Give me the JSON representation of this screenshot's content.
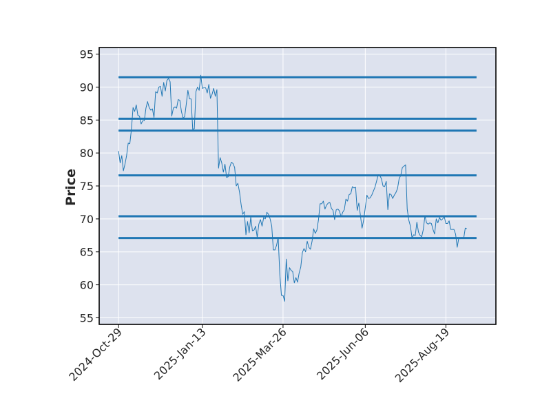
{
  "chart_data": {
    "type": "line",
    "title": "",
    "xlabel": "",
    "ylabel": "Price",
    "ylim": [
      54,
      96
    ],
    "yticks": [
      55,
      60,
      65,
      70,
      75,
      80,
      85,
      90,
      95
    ],
    "xtick_labels": [
      "2024-Oct-29",
      "2025-Jan-13",
      "2025-Mar-26",
      "2025-Jun-06",
      "2025-Aug-19"
    ],
    "xtick_positions": [
      0,
      52,
      102,
      153,
      203
    ],
    "xlim": [
      -12,
      234
    ],
    "grid": true,
    "horizontal_levels": [
      91.5,
      85.2,
      83.4,
      76.6,
      70.4,
      67.1
    ],
    "level_span": [
      0,
      222
    ],
    "series": [
      {
        "name": "",
        "points": [
          [
            0,
            80.3
          ],
          [
            1,
            78.5
          ],
          [
            2,
            79.6
          ],
          [
            3,
            77.3
          ],
          [
            4,
            78.3
          ],
          [
            5,
            79.6
          ],
          [
            6,
            81.5
          ],
          [
            7,
            81.4
          ],
          [
            8,
            83.6
          ],
          [
            9,
            86.9
          ],
          [
            10,
            86.3
          ],
          [
            11,
            87.3
          ],
          [
            12,
            85.7
          ],
          [
            13,
            85.6
          ],
          [
            14,
            84.4
          ],
          [
            15,
            84.9
          ],
          [
            16,
            84.9
          ],
          [
            17,
            86.8
          ],
          [
            18,
            87.8
          ],
          [
            19,
            86.9
          ],
          [
            20,
            86.5
          ],
          [
            21,
            86.7
          ],
          [
            22,
            85.4
          ],
          [
            23,
            89.3
          ],
          [
            24,
            89.1
          ],
          [
            25,
            90.0
          ],
          [
            26,
            90.1
          ],
          [
            27,
            88.6
          ],
          [
            28,
            90.7
          ],
          [
            29,
            89.4
          ],
          [
            30,
            91.0
          ],
          [
            31,
            91.3
          ],
          [
            32,
            90.8
          ],
          [
            33,
            85.6
          ],
          [
            34,
            86.8
          ],
          [
            35,
            87.0
          ],
          [
            36,
            86.8
          ],
          [
            37,
            88.1
          ],
          [
            38,
            88.0
          ],
          [
            39,
            86.3
          ],
          [
            40,
            85.3
          ],
          [
            41,
            85.5
          ],
          [
            42,
            87.4
          ],
          [
            43,
            89.5
          ],
          [
            44,
            88.2
          ],
          [
            45,
            88.2
          ],
          [
            46,
            83.6
          ],
          [
            47,
            83.7
          ],
          [
            48,
            89.3
          ],
          [
            49,
            90.0
          ],
          [
            50,
            89.5
          ],
          [
            51,
            91.8
          ],
          [
            52,
            89.8
          ],
          [
            53,
            89.9
          ],
          [
            54,
            89.9
          ],
          [
            55,
            89.1
          ],
          [
            56,
            90.4
          ],
          [
            57,
            88.3
          ],
          [
            58,
            88.9
          ],
          [
            59,
            89.8
          ],
          [
            60,
            88.6
          ],
          [
            61,
            89.6
          ],
          [
            62,
            77.7
          ],
          [
            63,
            79.3
          ],
          [
            64,
            78.5
          ],
          [
            65,
            77.1
          ],
          [
            66,
            78.3
          ],
          [
            67,
            76.3
          ],
          [
            68,
            76.4
          ],
          [
            69,
            77.9
          ],
          [
            70,
            78.6
          ],
          [
            71,
            78.4
          ],
          [
            72,
            77.8
          ],
          [
            73,
            75.0
          ],
          [
            74,
            75.4
          ],
          [
            75,
            74.1
          ],
          [
            76,
            72.2
          ],
          [
            77,
            70.7
          ],
          [
            78,
            71.1
          ],
          [
            79,
            67.6
          ],
          [
            80,
            69.6
          ],
          [
            81,
            67.9
          ],
          [
            82,
            70.3
          ],
          [
            83,
            68.2
          ],
          [
            84,
            68.3
          ],
          [
            85,
            68.9
          ],
          [
            86,
            67.2
          ],
          [
            87,
            69.2
          ],
          [
            88,
            69.9
          ],
          [
            89,
            68.9
          ],
          [
            90,
            70.2
          ],
          [
            91,
            70.0
          ],
          [
            92,
            71.0
          ],
          [
            93,
            70.7
          ],
          [
            94,
            70.0
          ],
          [
            95,
            68.9
          ],
          [
            96,
            65.3
          ],
          [
            97,
            65.3
          ],
          [
            98,
            66.0
          ],
          [
            99,
            67.2
          ],
          [
            100,
            61.6
          ],
          [
            101,
            58.4
          ],
          [
            102,
            58.4
          ],
          [
            103,
            57.5
          ],
          [
            104,
            63.9
          ],
          [
            105,
            60.6
          ],
          [
            106,
            62.6
          ],
          [
            107,
            62.2
          ],
          [
            108,
            62.0
          ],
          [
            109,
            60.3
          ],
          [
            110,
            61.1
          ],
          [
            111,
            60.4
          ],
          [
            112,
            61.8
          ],
          [
            113,
            62.7
          ],
          [
            114,
            64.9
          ],
          [
            115,
            65.5
          ],
          [
            116,
            65.0
          ],
          [
            117,
            66.6
          ],
          [
            118,
            65.7
          ],
          [
            119,
            65.4
          ],
          [
            120,
            66.6
          ],
          [
            121,
            68.5
          ],
          [
            122,
            67.8
          ],
          [
            123,
            68.3
          ],
          [
            124,
            69.9
          ],
          [
            125,
            72.3
          ],
          [
            126,
            72.3
          ],
          [
            127,
            72.7
          ],
          [
            128,
            71.5
          ],
          [
            129,
            72.1
          ],
          [
            130,
            72.4
          ],
          [
            131,
            72.5
          ],
          [
            132,
            71.6
          ],
          [
            133,
            71.3
          ],
          [
            134,
            69.9
          ],
          [
            135,
            71.4
          ],
          [
            136,
            71.5
          ],
          [
            137,
            71.2
          ],
          [
            138,
            70.3
          ],
          [
            139,
            71.0
          ],
          [
            140,
            71.4
          ],
          [
            141,
            73.0
          ],
          [
            142,
            72.7
          ],
          [
            143,
            73.7
          ],
          [
            144,
            73.8
          ],
          [
            145,
            74.9
          ],
          [
            146,
            74.7
          ],
          [
            147,
            74.8
          ],
          [
            148,
            71.3
          ],
          [
            149,
            72.4
          ],
          [
            150,
            70.5
          ],
          [
            151,
            68.6
          ],
          [
            152,
            69.8
          ],
          [
            153,
            71.7
          ],
          [
            154,
            73.6
          ],
          [
            155,
            73.1
          ],
          [
            156,
            73.2
          ],
          [
            157,
            73.6
          ],
          [
            158,
            74.2
          ],
          [
            159,
            74.8
          ],
          [
            160,
            75.7
          ],
          [
            161,
            76.7
          ],
          [
            162,
            76.6
          ],
          [
            163,
            76.1
          ],
          [
            164,
            75.0
          ],
          [
            165,
            74.9
          ],
          [
            166,
            75.7
          ],
          [
            167,
            71.4
          ],
          [
            168,
            73.8
          ],
          [
            169,
            73.7
          ],
          [
            170,
            73.1
          ],
          [
            171,
            73.6
          ],
          [
            172,
            74.0
          ],
          [
            173,
            74.6
          ],
          [
            174,
            76.1
          ],
          [
            175,
            76.6
          ],
          [
            176,
            77.8
          ],
          [
            177,
            78.0
          ],
          [
            178,
            78.2
          ],
          [
            179,
            71.5
          ],
          [
            180,
            69.8
          ],
          [
            181,
            68.9
          ],
          [
            182,
            67.1
          ],
          [
            183,
            67.6
          ],
          [
            184,
            67.5
          ],
          [
            185,
            69.5
          ],
          [
            186,
            68.0
          ],
          [
            187,
            67.5
          ],
          [
            188,
            67.3
          ],
          [
            189,
            68.4
          ],
          [
            190,
            70.5
          ],
          [
            191,
            69.4
          ],
          [
            192,
            69.2
          ],
          [
            193,
            69.4
          ],
          [
            194,
            69.3
          ],
          [
            195,
            68.4
          ],
          [
            196,
            67.7
          ],
          [
            197,
            70.0
          ],
          [
            198,
            69.4
          ],
          [
            199,
            70.2
          ],
          [
            200,
            69.8
          ],
          [
            201,
            70.0
          ],
          [
            202,
            70.3
          ],
          [
            203,
            69.3
          ],
          [
            204,
            69.3
          ],
          [
            205,
            69.7
          ],
          [
            206,
            68.4
          ],
          [
            207,
            68.4
          ],
          [
            208,
            68.4
          ],
          [
            209,
            67.7
          ],
          [
            210,
            65.7
          ],
          [
            211,
            67.1
          ],
          [
            212,
            67.0
          ],
          [
            213,
            67.2
          ],
          [
            214,
            67.0
          ],
          [
            215,
            68.6
          ],
          [
            216,
            68.5
          ]
        ]
      }
    ],
    "colors": {
      "plot_background": "#dde2ee",
      "grid": "#ffffff",
      "line": "#1f77b4",
      "levels": "#1f77b4",
      "frame": "#000000"
    }
  }
}
